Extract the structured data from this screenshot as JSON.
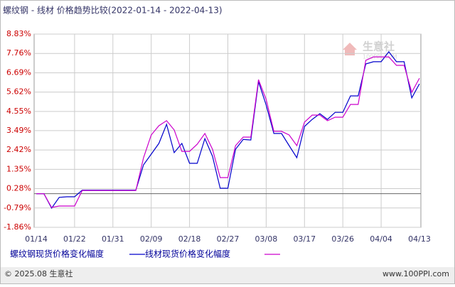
{
  "chart_data": {
    "type": "line",
    "title": "螺纹钢 - 线材 价格趋势比较(2022-01-14 - 2022-04-13)",
    "categories": [
      "01/14",
      null,
      null,
      null,
      null,
      "01/22",
      null,
      null,
      null,
      null,
      "01/31",
      null,
      null,
      null,
      null,
      "02/09",
      null,
      null,
      null,
      null,
      "02/18",
      null,
      null,
      null,
      null,
      "02/27",
      null,
      null,
      null,
      null,
      "03/08",
      null,
      null,
      null,
      null,
      "03/17",
      null,
      null,
      null,
      null,
      "03/26",
      null,
      null,
      null,
      null,
      "04/04",
      null,
      null,
      null,
      null,
      "04/13"
    ],
    "series": [
      {
        "name": "螺纹钢现货价格变化幅度",
        "color": "#0000cc",
        "values": [
          0,
          0,
          -0.8,
          -0.2,
          -0.17,
          -0.17,
          0.2,
          0.2,
          0.2,
          0.2,
          0.2,
          0.2,
          0.2,
          0.2,
          1.6,
          2.19,
          2.78,
          3.84,
          2.27,
          2.78,
          1.68,
          1.68,
          3.05,
          2.07,
          0.3,
          0.3,
          2.46,
          3.0,
          2.97,
          6.2,
          4.9,
          3.33,
          3.33,
          2.66,
          1.99,
          3.72,
          4.11,
          4.43,
          4.11,
          4.5,
          4.5,
          5.41,
          5.41,
          7.18,
          7.3,
          7.3,
          7.85,
          7.3,
          7.3,
          5.3,
          6.08
        ]
      },
      {
        "name": "线材现货价格变化幅度",
        "color": "#cc00cc",
        "values": [
          0,
          0,
          -0.76,
          -0.68,
          -0.68,
          -0.68,
          0.18,
          0.18,
          0.18,
          0.18,
          0.18,
          0.18,
          0.18,
          0.18,
          1.99,
          3.25,
          3.76,
          4.04,
          3.53,
          2.34,
          2.34,
          2.74,
          3.33,
          2.46,
          0.89,
          0.89,
          2.66,
          3.13,
          3.13,
          6.31,
          5.21,
          3.45,
          3.45,
          3.25,
          2.66,
          3.96,
          4.35,
          4.35,
          4.04,
          4.23,
          4.23,
          4.94,
          4.94,
          7.38,
          7.57,
          7.57,
          7.57,
          7.1,
          7.1,
          5.61,
          6.39
        ]
      }
    ],
    "ylim": [
      -1.86,
      8.83
    ],
    "yticks": [
      {
        "value": 8.83,
        "label": "8.83%"
      },
      {
        "value": 7.76,
        "label": "7.76%"
      },
      {
        "value": 6.69,
        "label": "6.69%"
      },
      {
        "value": 5.62,
        "label": "5.62%"
      },
      {
        "value": 4.55,
        "label": "4.55%"
      },
      {
        "value": 3.49,
        "label": "3.49%"
      },
      {
        "value": 2.42,
        "label": "2.42%"
      },
      {
        "value": 1.35,
        "label": "1.35%"
      },
      {
        "value": 0.28,
        "label": "0.28%"
      },
      {
        "value": -0.79,
        "label": "-0.79%"
      },
      {
        "value": -1.86,
        "label": "-1.86%"
      }
    ],
    "grid": true,
    "watermark": {
      "brand": "生意社",
      "site": "100PPI.COM"
    },
    "footer": {
      "left": "© 2025.08 生意社",
      "right": "www.100PPI.com"
    }
  }
}
